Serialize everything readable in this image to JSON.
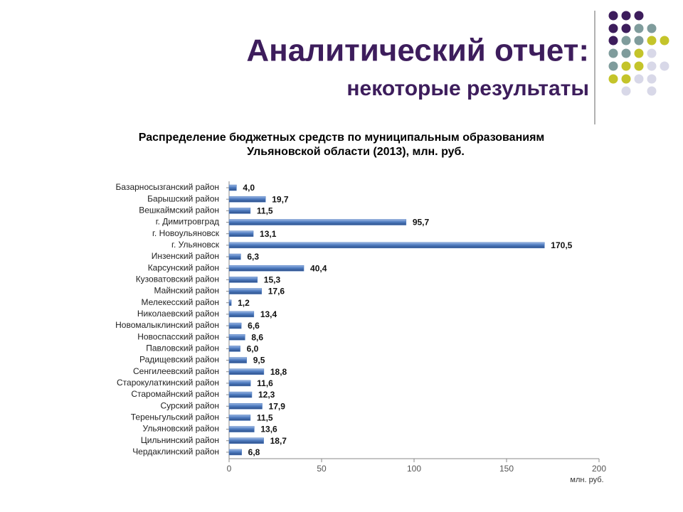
{
  "header": {
    "title": "Аналитический отчет:",
    "subtitle": "некоторые результаты"
  },
  "chart_data": {
    "type": "bar",
    "orientation": "horizontal",
    "title": [
      "Распределение бюджетных средств по муниципальным образованиям",
      "Ульяновской области (2013), млн. руб."
    ],
    "categories": [
      "Базарносызганский район",
      "Барышский район",
      "Вешкаймский район",
      "г. Димитровград",
      "г. Новоульяновск",
      "г. Ульяновск",
      "Инзенский район",
      "Карсунский район",
      "Кузоватовский район",
      "Майнский район",
      "Мелекесский район",
      "Николаевский район",
      "Новомалыклинский район",
      "Новоспасский район",
      "Павловский район",
      "Радищевский район",
      "Сенгилеевский район",
      "Старокулаткинский район",
      "Старомайнский район",
      "Сурский район",
      "Тереньгульский район",
      "Ульяновский район",
      "Цильнинский район",
      "Чердаклинский район"
    ],
    "values": [
      4.0,
      19.7,
      11.5,
      95.7,
      13.1,
      170.5,
      6.3,
      40.4,
      15.3,
      17.6,
      1.2,
      13.4,
      6.6,
      8.6,
      6.0,
      9.5,
      18.8,
      11.6,
      12.3,
      17.9,
      11.5,
      13.6,
      18.7,
      6.8
    ],
    "value_labels": [
      "4,0",
      "19,7",
      "11,5",
      "95,7",
      "13,1",
      "170,5",
      "6,3",
      "40,4",
      "15,3",
      "17,6",
      "1,2",
      "13,4",
      "6,6",
      "8,6",
      "6,0",
      "9,5",
      "18,8",
      "11,6",
      "12,3",
      "17,9",
      "11,5",
      "13,6",
      "18,7",
      "6,8"
    ],
    "color": "#4f7cc0",
    "xlim": [
      0,
      200
    ],
    "xticks": [
      0,
      50,
      100,
      150,
      200
    ],
    "xlabel": "млн. руб."
  }
}
